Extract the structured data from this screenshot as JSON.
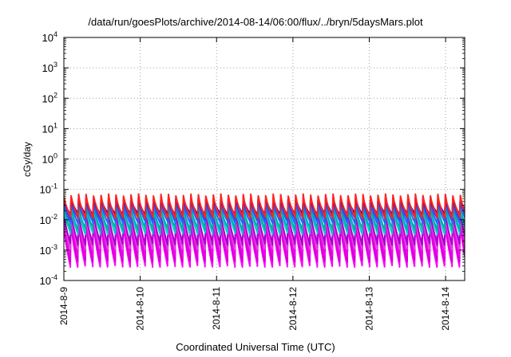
{
  "chart_data": {
    "type": "line",
    "title": "/data/run/goesPlots/archive/2014-08-14/06:00/flux/../bryn/5daysMars.plot",
    "xlabel": "Coordinated Universal Time (UTC)",
    "ylabel": "cGy/day",
    "y_scale": "log",
    "ylim": [
      0.0001,
      10000
    ],
    "y_ticks": [
      {
        "value": 0.0001,
        "base": "10",
        "exp": "-4"
      },
      {
        "value": 0.001,
        "base": "10",
        "exp": "-3"
      },
      {
        "value": 0.01,
        "base": "10",
        "exp": "-2"
      },
      {
        "value": 0.1,
        "base": "10",
        "exp": "-1"
      },
      {
        "value": 1,
        "base": "10",
        "exp": "0"
      },
      {
        "value": 10,
        "base": "10",
        "exp": "1"
      },
      {
        "value": 100,
        "base": "10",
        "exp": "2"
      },
      {
        "value": 1000,
        "base": "10",
        "exp": "3"
      },
      {
        "value": 10000,
        "base": "10",
        "exp": "4"
      }
    ],
    "x_scale": "time",
    "xlim": [
      "2014-08-09T00:00",
      "2014-08-14T06:00"
    ],
    "x_ticks": [
      "2014-8-9",
      "2014-8-10",
      "2014-8-11",
      "2014-8-12",
      "2014-8-13",
      "2014-8-14"
    ],
    "grid": true,
    "legend": "none",
    "pattern": {
      "cycles_per_day": 10.2,
      "note_values": "each series oscillates in a sawtooth: fast rise to peak, slow decay to trough"
    },
    "series": [
      {
        "color": "#ff00ff",
        "peak": 0.01,
        "trough": 0.0003
      },
      {
        "color": "#cc00cc",
        "peak": 0.011,
        "trough": 0.00045
      },
      {
        "color": "#ee00ee",
        "peak": 0.013,
        "trough": 0.00065
      },
      {
        "color": "#dd44dd",
        "peak": 0.016,
        "trough": 0.0011
      },
      {
        "color": "#aa00cc",
        "peak": 0.02,
        "trough": 0.0016
      },
      {
        "color": "#00cccc",
        "peak": 0.026,
        "trough": 0.0035
      },
      {
        "color": "#00aaaa",
        "peak": 0.03,
        "trough": 0.005
      },
      {
        "color": "#2266ff",
        "peak": 0.04,
        "trough": 0.008
      },
      {
        "color": "#3344dd",
        "peak": 0.045,
        "trough": 0.011
      },
      {
        "color": "#1111bb",
        "peak": 0.05,
        "trough": 0.015
      },
      {
        "color": "#ff2222",
        "peak": 0.065,
        "trough": 0.012
      }
    ]
  }
}
